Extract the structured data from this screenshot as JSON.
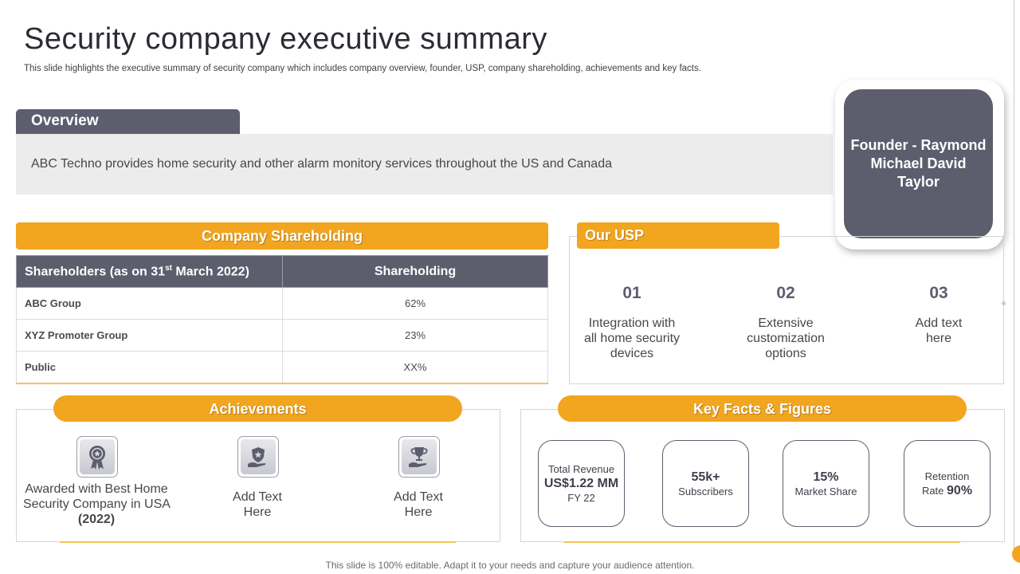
{
  "slide": {
    "title": "Security company executive summary",
    "subtitle": "This slide highlights the executive summary of security company which includes company overview, founder, USP,  company shareholding, achievements and key facts.",
    "footer": "This slide is 100% editable. Adapt it to your needs and capture your audience attention."
  },
  "overview": {
    "label": "Overview",
    "text": "ABC Techno provides home security and other alarm monitory services throughout  the US and Canada"
  },
  "founder": {
    "text": "Founder - Raymond Michael David Taylor"
  },
  "shareholding": {
    "title": "Company Shareholding",
    "col1_prefix": "Shareholders (as on 31",
    "col1_sup": "st",
    "col1_suffix": " March 2022)",
    "col2": "Shareholding",
    "rows": [
      {
        "holder": "ABC Group",
        "share": "62%"
      },
      {
        "holder": "XYZ Promoter Group",
        "share": "23%"
      },
      {
        "holder": "Public",
        "share": "XX%"
      }
    ]
  },
  "usp": {
    "title": "Our USP",
    "items": [
      {
        "num": "01",
        "text": "Integration with all home security devices"
      },
      {
        "num": "02",
        "text": "Extensive customization options"
      },
      {
        "num": "03",
        "text": "Add text here"
      }
    ]
  },
  "achievements": {
    "title": "Achievements",
    "items": [
      {
        "icon": "award-medal-icon",
        "text": "Awarded with Best Home Security Company in USA",
        "year": "(2022)"
      },
      {
        "icon": "badge-hand-icon",
        "text": "Add Text Here"
      },
      {
        "icon": "trophy-hand-icon",
        "text": "Add Text Here"
      }
    ]
  },
  "key_facts": {
    "title": "Key Facts & Figures",
    "revenue": {
      "label": "Total Revenue",
      "value": "US$1.22 MM",
      "period": "FY 22"
    },
    "subscribers": {
      "value": "55k+",
      "label": "Subscribers"
    },
    "market_share": {
      "value": "15%",
      "label": "Market Share"
    },
    "retention": {
      "label_line1": "Retention",
      "label_line2": "Rate",
      "value": "90%"
    }
  },
  "colors": {
    "accent": "#f2a51f",
    "slate": "#5c5e6e",
    "panel": "#ececec"
  }
}
